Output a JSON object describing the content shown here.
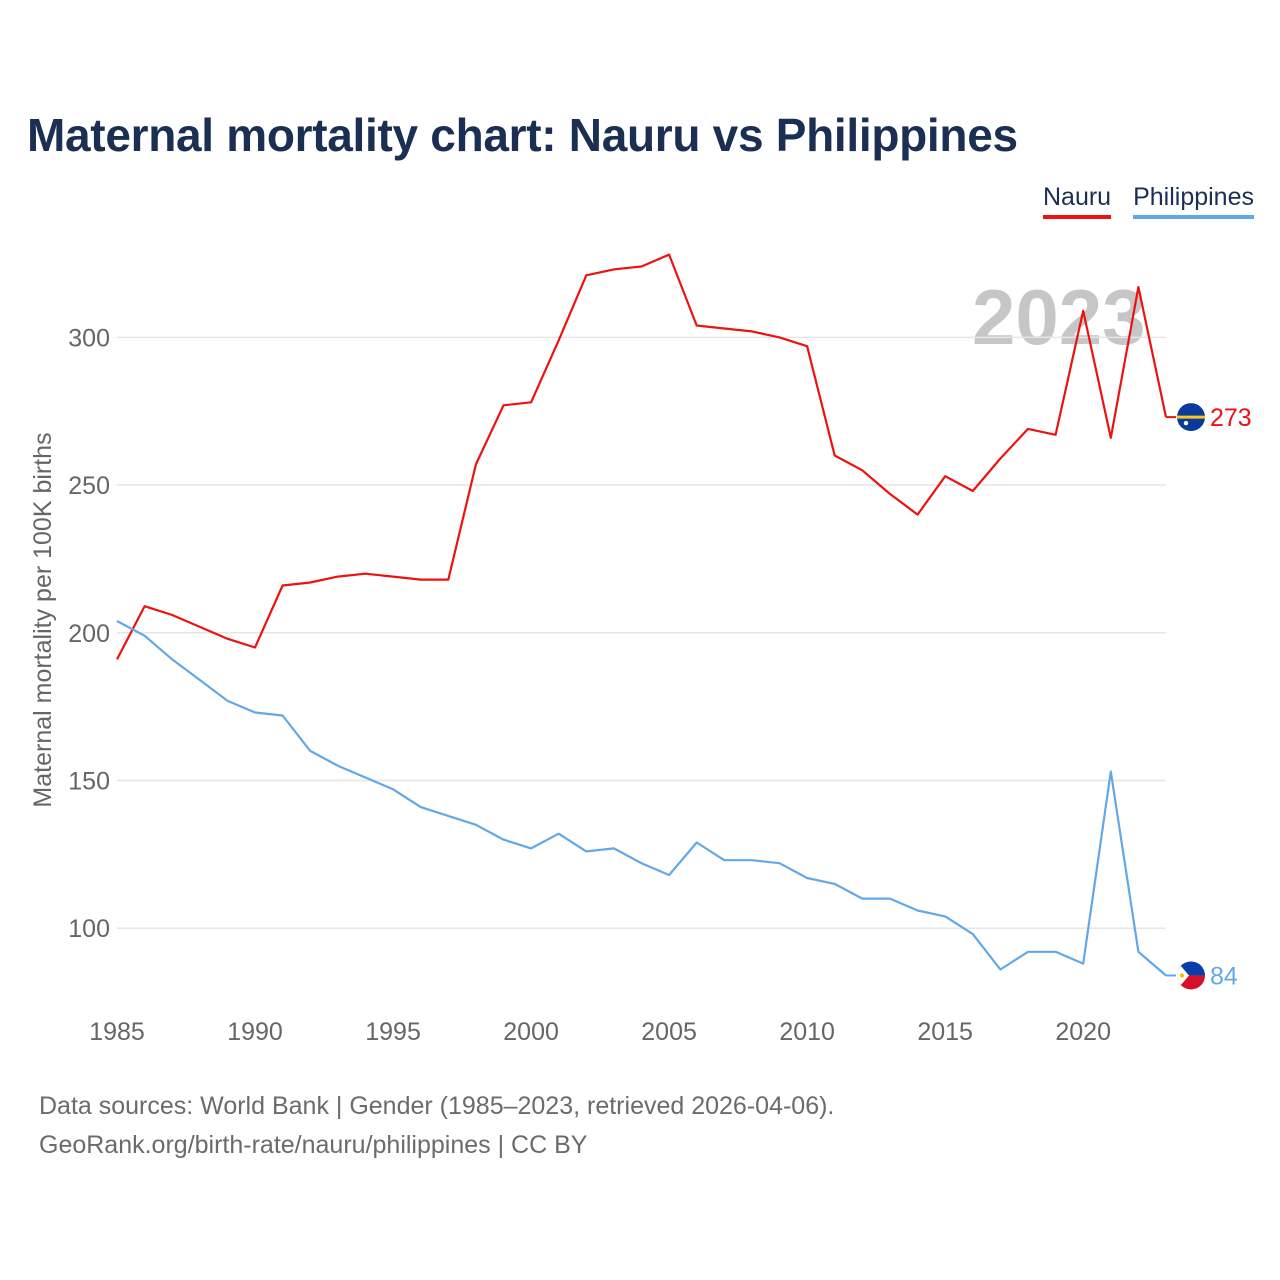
{
  "title": "Maternal mortality chart: Nauru vs Philippines",
  "year_label": "2023",
  "colors": {
    "nauru": "#ee1111",
    "philippines": "#62a8e6",
    "title": "#1a2f52",
    "grid": "#e6e6e6",
    "axis_text": "#666666"
  },
  "chart_data": {
    "type": "line",
    "title": "Maternal mortality chart: Nauru vs Philippines",
    "xlabel": "",
    "ylabel": "Maternal mortality per 100K births",
    "xlim": [
      1985,
      2023
    ],
    "ylim": [
      74,
      336
    ],
    "x_ticks": [
      1985,
      1990,
      1995,
      2000,
      2005,
      2010,
      2015,
      2020
    ],
    "y_ticks": [
      100,
      150,
      200,
      250,
      300
    ],
    "legend_position": "top-right",
    "x": [
      1985,
      1986,
      1987,
      1988,
      1989,
      1990,
      1991,
      1992,
      1993,
      1994,
      1995,
      1996,
      1997,
      1998,
      1999,
      2000,
      2001,
      2002,
      2003,
      2004,
      2005,
      2006,
      2007,
      2008,
      2009,
      2010,
      2011,
      2012,
      2013,
      2014,
      2015,
      2016,
      2017,
      2018,
      2019,
      2020,
      2021,
      2022,
      2023
    ],
    "series": [
      {
        "name": "Nauru",
        "color": "#ee1111",
        "end_label": "273",
        "values": [
          191,
          209,
          206,
          202,
          198,
          195,
          216,
          217,
          219,
          220,
          219,
          218,
          218,
          257,
          277,
          278,
          299,
          321,
          323,
          324,
          328,
          304,
          303,
          302,
          300,
          297,
          260,
          255,
          247,
          240,
          253,
          248,
          259,
          269,
          267,
          309,
          266,
          317,
          273
        ]
      },
      {
        "name": "Philippines",
        "color": "#62a8e6",
        "end_label": "84",
        "values": [
          204,
          199,
          191,
          184,
          177,
          173,
          172,
          160,
          155,
          151,
          147,
          141,
          138,
          135,
          130,
          127,
          132,
          126,
          127,
          122,
          118,
          129,
          123,
          123,
          122,
          117,
          115,
          110,
          110,
          106,
          104,
          98,
          86,
          92,
          92,
          88,
          153,
          92,
          84
        ]
      }
    ]
  },
  "footer": {
    "line1": "Data sources: World Bank | Gender (1985–2023, retrieved 2026-04-06).",
    "line2": "GeoRank.org/birth-rate/nauru/philippines | CC BY"
  }
}
